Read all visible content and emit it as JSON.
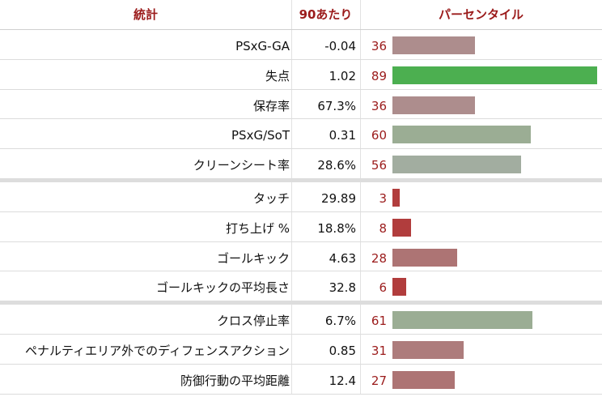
{
  "header": {
    "stat": "統計",
    "per90": "90あたり",
    "percentile": "パーセンタイル"
  },
  "groups": [
    [
      {
        "label": "PSxG-GA",
        "value": "-0.04",
        "pct": 36,
        "color": "#ad8d8d"
      },
      {
        "label": "失点",
        "value": "1.02",
        "pct": 89,
        "color": "#4caf50"
      },
      {
        "label": "保存率",
        "value": "67.3%",
        "pct": 36,
        "color": "#ad8d8d"
      },
      {
        "label": "PSxG/SoT",
        "value": "0.31",
        "pct": 60,
        "color": "#9bad94"
      },
      {
        "label": "クリーンシート率",
        "value": "28.6%",
        "pct": 56,
        "color": "#a2ada0"
      }
    ],
    [
      {
        "label": "タッチ",
        "value": "29.89",
        "pct": 3,
        "color": "#b13d3d"
      },
      {
        "label": "打ち上げ %",
        "value": "18.8%",
        "pct": 8,
        "color": "#b13d3d"
      },
      {
        "label": "ゴールキック",
        "value": "4.63",
        "pct": 28,
        "color": "#ad7474"
      },
      {
        "label": "ゴールキックの平均長さ",
        "value": "32.8",
        "pct": 6,
        "color": "#b13d3d"
      }
    ],
    [
      {
        "label": "クロス停止率",
        "value": "6.7%",
        "pct": 61,
        "color": "#9bad94"
      },
      {
        "label": "ペナルティエリア外でのディフェンスアクション",
        "value": "0.85",
        "pct": 31,
        "color": "#ad7c7c"
      },
      {
        "label": "防御行動の平均距離",
        "value": "12.4",
        "pct": 27,
        "color": "#ad7474"
      }
    ]
  ]
}
